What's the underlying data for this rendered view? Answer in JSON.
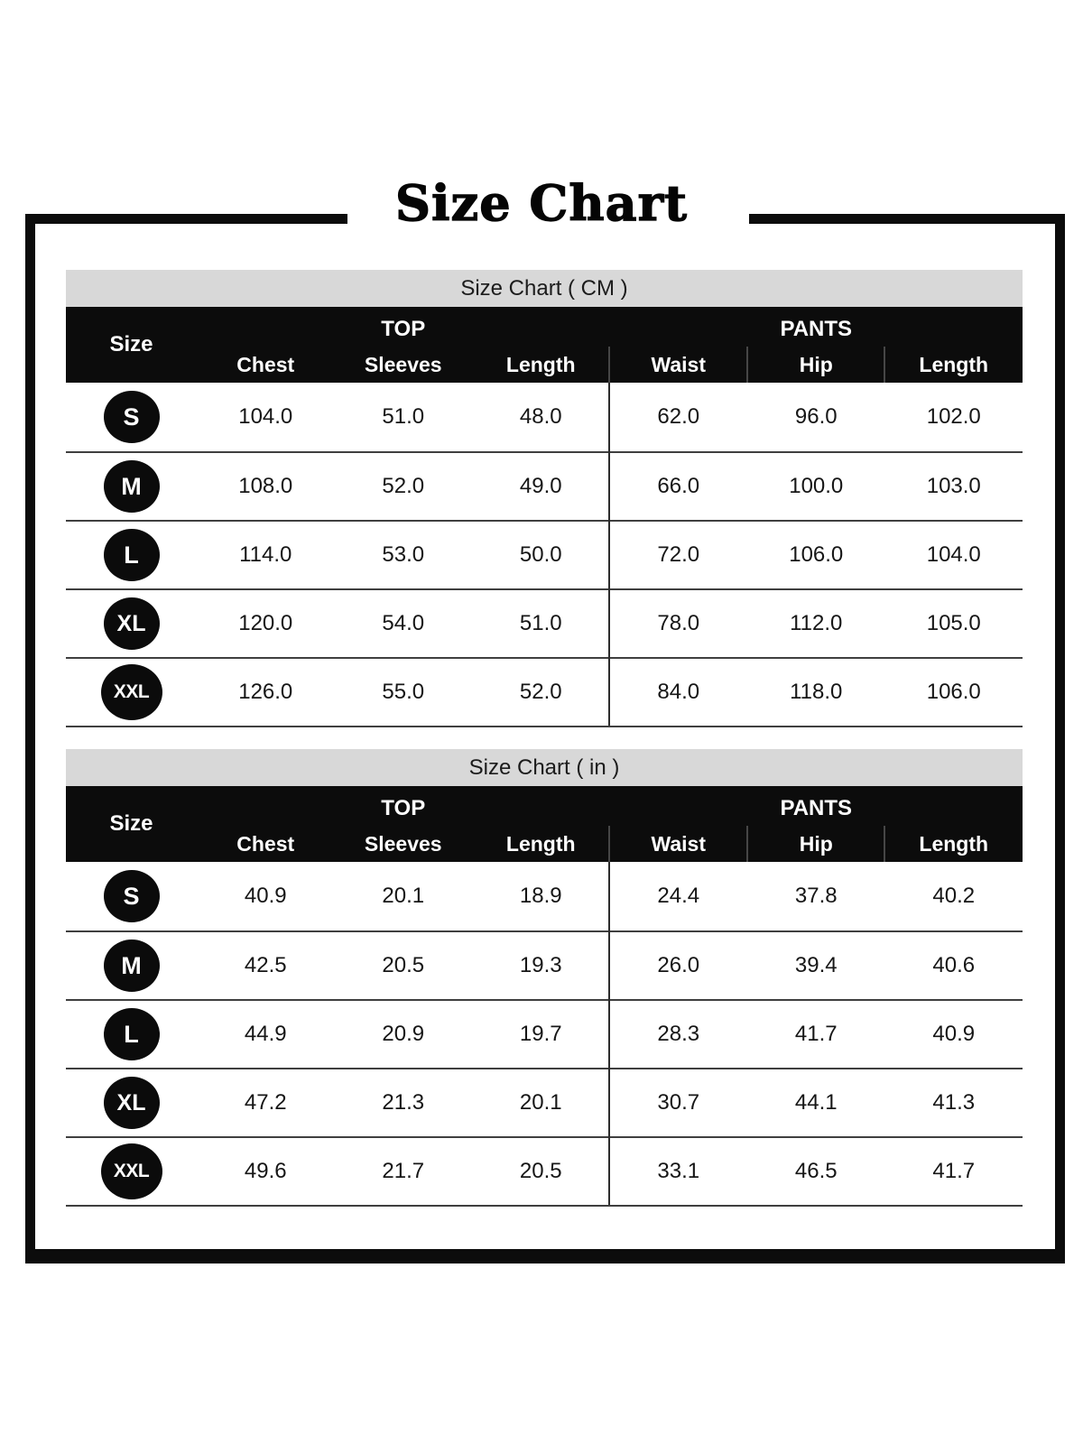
{
  "page": {
    "title": "Size Chart"
  },
  "colors": {
    "frame_black": "#0c0c0c",
    "header_black": "#0c0c0c",
    "band_gray": "#d8d8d8",
    "row_line": "#3f3f3f",
    "text_dark": "#161616",
    "text_white": "#ffffff",
    "background": "#ffffff"
  },
  "tables": [
    {
      "title": "Size Chart ( CM )",
      "size_col_header": "Size",
      "groups": [
        {
          "label": "TOP",
          "columns": [
            "Chest",
            "Sleeves",
            "Length"
          ]
        },
        {
          "label": "PANTS",
          "columns": [
            "Waist",
            "Hip",
            "Length"
          ]
        }
      ],
      "rows": [
        {
          "size": "S",
          "values": [
            "104.0",
            "51.0",
            "48.0",
            "62.0",
            "96.0",
            "102.0"
          ]
        },
        {
          "size": "M",
          "values": [
            "108.0",
            "52.0",
            "49.0",
            "66.0",
            "100.0",
            "103.0"
          ]
        },
        {
          "size": "L",
          "values": [
            "114.0",
            "53.0",
            "50.0",
            "72.0",
            "106.0",
            "104.0"
          ]
        },
        {
          "size": "XL",
          "values": [
            "120.0",
            "54.0",
            "51.0",
            "78.0",
            "112.0",
            "105.0"
          ]
        },
        {
          "size": "XXL",
          "values": [
            "126.0",
            "55.0",
            "52.0",
            "84.0",
            "118.0",
            "106.0"
          ]
        }
      ]
    },
    {
      "title": "Size Chart ( in )",
      "size_col_header": "Size",
      "groups": [
        {
          "label": "TOP",
          "columns": [
            "Chest",
            "Sleeves",
            "Length"
          ]
        },
        {
          "label": "PANTS",
          "columns": [
            "Waist",
            "Hip",
            "Length"
          ]
        }
      ],
      "rows": [
        {
          "size": "S",
          "values": [
            "40.9",
            "20.1",
            "18.9",
            "24.4",
            "37.8",
            "40.2"
          ]
        },
        {
          "size": "M",
          "values": [
            "42.5",
            "20.5",
            "19.3",
            "26.0",
            "39.4",
            "40.6"
          ]
        },
        {
          "size": "L",
          "values": [
            "44.9",
            "20.9",
            "19.7",
            "28.3",
            "41.7",
            "40.9"
          ]
        },
        {
          "size": "XL",
          "values": [
            "47.2",
            "21.3",
            "20.1",
            "30.7",
            "44.1",
            "41.3"
          ]
        },
        {
          "size": "XXL",
          "values": [
            "49.6",
            "21.7",
            "20.5",
            "33.1",
            "46.5",
            "41.7"
          ]
        }
      ]
    }
  ]
}
